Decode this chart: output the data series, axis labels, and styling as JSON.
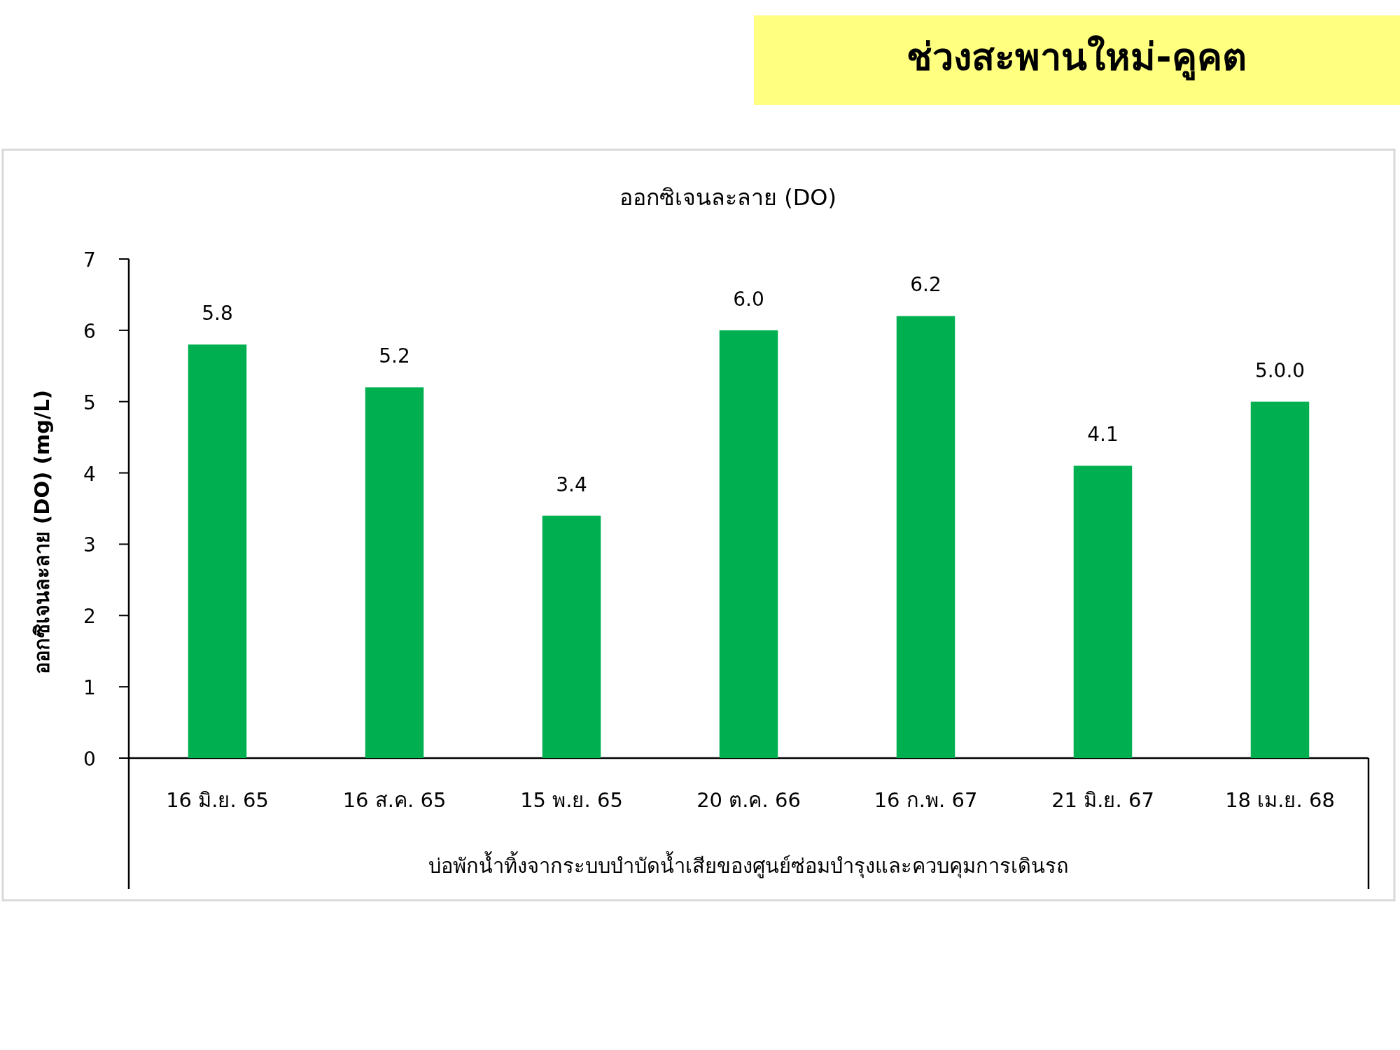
{
  "chart_data": {
    "type": "bar",
    "title": "ช่วงสะพานใหม่-คูคต",
    "subtitle": "ออกซิเจนละลาย (DO)",
    "xlabel": "บ่อพักน้ำทิ้งจากระบบบำบัดน้ำเสียของศูนย์ซ่อมบำรุงและควบคุมการเดินรถ",
    "ylabel": "ออกซิเจนละลาย (DO) (mg/L)",
    "categories": [
      "16 มิ.ย. 65",
      "16 ส.ค. 65",
      "15 พ.ย. 65",
      "20 ต.ค. 66",
      "16 ก.พ. 67",
      "21 มิ.ย. 67",
      "18 เม.ย. 68"
    ],
    "values": [
      5.8,
      5.2,
      3.4,
      6.0,
      6.2,
      4.1,
      5.0
    ],
    "value_labels": [
      "5.8",
      "5.2",
      "3.4",
      "6.0",
      "6.2",
      "4.1",
      "5.0.0"
    ],
    "color": "#00b050",
    "ylim": [
      0,
      7
    ],
    "yticks": [
      0,
      1,
      2,
      3,
      4,
      5,
      6,
      7
    ]
  }
}
